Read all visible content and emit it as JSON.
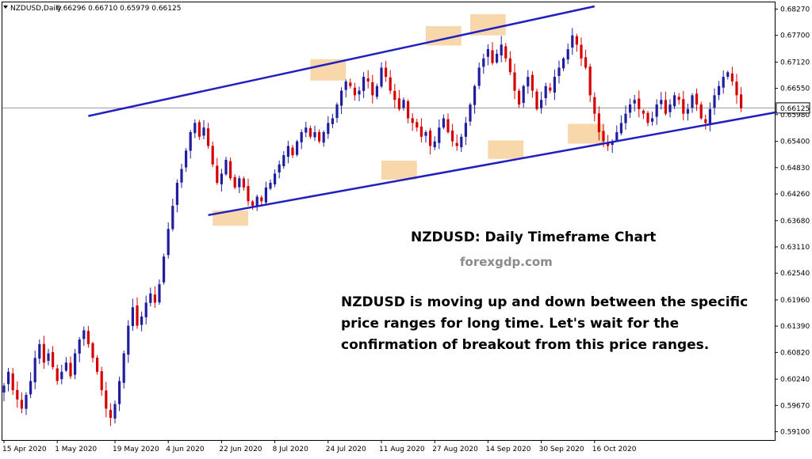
{
  "chart_data": {
    "type": "candlestick",
    "symbol_label": "NZDUSD,Daily",
    "ohlc_readout": "0.66296 0.66710 0.65979 0.66125",
    "current_price_label": "0.66125",
    "current_price": 0.66125,
    "title": "NZDUSD: Daily Timeframe Chart",
    "source": "forexgdp.com",
    "annotation_lines": [
      "NZDUSD is moving up and down between the specific",
      "price ranges for long time. Let's wait for the",
      "confirmation of breakout from this price ranges."
    ],
    "ylim": [
      0.589,
      0.685
    ],
    "y_ticks": [
      "0.68270",
      "0.67700",
      "0.67120",
      "0.66550",
      "0.65980",
      "0.65400",
      "0.64830",
      "0.64260",
      "0.63680",
      "0.63110",
      "0.62540",
      "0.61960",
      "0.61390",
      "0.60820",
      "0.60240",
      "0.59670",
      "0.59100"
    ],
    "x_ticks": [
      {
        "label": "15 Apr 2020",
        "index": 0
      },
      {
        "label": "1 May 2020",
        "index": 12
      },
      {
        "label": "19 May 2020",
        "index": 25
      },
      {
        "label": "4 Jun 2020",
        "index": 37
      },
      {
        "label": "22 Jun 2020",
        "index": 49
      },
      {
        "label": "8 Jul 2020",
        "index": 61
      },
      {
        "label": "24 Jul 2020",
        "index": 73
      },
      {
        "label": "11 Aug 2020",
        "index": 85
      },
      {
        "label": "27 Aug 2020",
        "index": 97
      },
      {
        "label": "14 Sep 2020",
        "index": 109
      },
      {
        "label": "30 Sep 2020",
        "index": 121
      },
      {
        "label": "16 Oct 2020",
        "index": 133
      }
    ],
    "closes": [
      0.601,
      0.604,
      0.6,
      0.598,
      0.596,
      0.599,
      0.602,
      0.607,
      0.61,
      0.606,
      0.608,
      0.605,
      0.602,
      0.604,
      0.606,
      0.603,
      0.608,
      0.611,
      0.613,
      0.61,
      0.607,
      0.604,
      0.6,
      0.596,
      0.594,
      0.597,
      0.602,
      0.608,
      0.614,
      0.618,
      0.614,
      0.616,
      0.619,
      0.621,
      0.619,
      0.623,
      0.629,
      0.635,
      0.64,
      0.645,
      0.648,
      0.652,
      0.656,
      0.658,
      0.655,
      0.657,
      0.653,
      0.649,
      0.645,
      0.647,
      0.65,
      0.646,
      0.644,
      0.646,
      0.644,
      0.641,
      0.64,
      0.642,
      0.641,
      0.644,
      0.645,
      0.647,
      0.649,
      0.651,
      0.653,
      0.651,
      0.654,
      0.656,
      0.657,
      0.655,
      0.656,
      0.654,
      0.656,
      0.658,
      0.659,
      0.662,
      0.665,
      0.667,
      0.666,
      0.664,
      0.665,
      0.668,
      0.667,
      0.664,
      0.666,
      0.67,
      0.668,
      0.665,
      0.663,
      0.661,
      0.663,
      0.659,
      0.658,
      0.657,
      0.655,
      0.656,
      0.653,
      0.654,
      0.657,
      0.659,
      0.656,
      0.654,
      0.653,
      0.655,
      0.658,
      0.662,
      0.666,
      0.67,
      0.672,
      0.674,
      0.671,
      0.673,
      0.675,
      0.672,
      0.669,
      0.665,
      0.662,
      0.666,
      0.668,
      0.665,
      0.661,
      0.663,
      0.666,
      0.665,
      0.668,
      0.67,
      0.672,
      0.674,
      0.677,
      0.675,
      0.672,
      0.67,
      0.664,
      0.66,
      0.656,
      0.654,
      0.653,
      0.654,
      0.656,
      0.658,
      0.66,
      0.662,
      0.663,
      0.661,
      0.66,
      0.658,
      0.659,
      0.662,
      0.663,
      0.66,
      0.662,
      0.664,
      0.663,
      0.66,
      0.661,
      0.664,
      0.662,
      0.659,
      0.658,
      0.661,
      0.664,
      0.666,
      0.668,
      0.669,
      0.667,
      0.664,
      0.6612
    ]
  },
  "colors": {
    "bull": "#1f1f9e",
    "bear": "#d40000",
    "channel": "#2020c0",
    "highlight": "#f5c98f",
    "grid_axis": "#000000",
    "price_line": "#9a9a9a"
  }
}
